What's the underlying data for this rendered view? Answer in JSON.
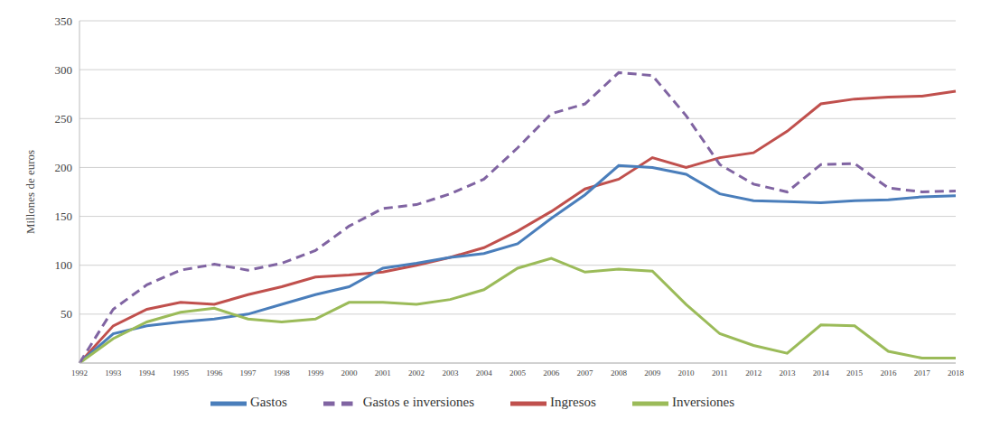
{
  "chart_data": {
    "type": "line",
    "y_label": "Millones de euros",
    "categories": [
      "1992",
      "1993",
      "1994",
      "1995",
      "1996",
      "1997",
      "1998",
      "1999",
      "2000",
      "2001",
      "2002",
      "2003",
      "2004",
      "2005",
      "2006",
      "2007",
      "2008",
      "2009",
      "2010",
      "2011",
      "2012",
      "2013",
      "2014",
      "2015",
      "2016",
      "2017",
      "2018"
    ],
    "series": [
      {
        "name": "Ingresos",
        "color": "#c0504d",
        "line_style": "solid",
        "values": [
          0,
          38,
          55,
          62,
          60,
          70,
          78,
          88,
          90,
          93,
          100,
          108,
          118,
          135,
          155,
          178,
          188,
          210,
          200,
          210,
          215,
          237,
          265,
          270,
          272,
          273,
          278
        ]
      },
      {
        "name": "Gastos",
        "color": "#4a7ebb",
        "line_style": "solid",
        "values": [
          0,
          30,
          38,
          42,
          45,
          50,
          60,
          70,
          78,
          97,
          102,
          108,
          112,
          122,
          148,
          172,
          202,
          200,
          193,
          173,
          166,
          165,
          164,
          166,
          167,
          170,
          171
        ]
      },
      {
        "name": "Inversiones",
        "color": "#9bbb59",
        "line_style": "solid",
        "values": [
          0,
          25,
          42,
          52,
          56,
          45,
          42,
          45,
          62,
          62,
          60,
          65,
          75,
          97,
          107,
          93,
          96,
          94,
          60,
          30,
          18,
          10,
          39,
          38,
          12,
          5,
          5
        ]
      },
      {
        "name": "Gastos e inversiones",
        "color": "#8064a2",
        "line_style": "dashed",
        "values": [
          0,
          55,
          80,
          95,
          101,
          95,
          102,
          115,
          140,
          158,
          162,
          173,
          188,
          220,
          255,
          265,
          297,
          294,
          253,
          203,
          183,
          175,
          203,
          204,
          179,
          175,
          176
        ]
      }
    ],
    "ylim": [
      0,
      350
    ],
    "yticks": [
      50,
      100,
      150,
      200,
      250,
      300,
      350
    ],
    "grid": true,
    "legend": "bottom"
  }
}
